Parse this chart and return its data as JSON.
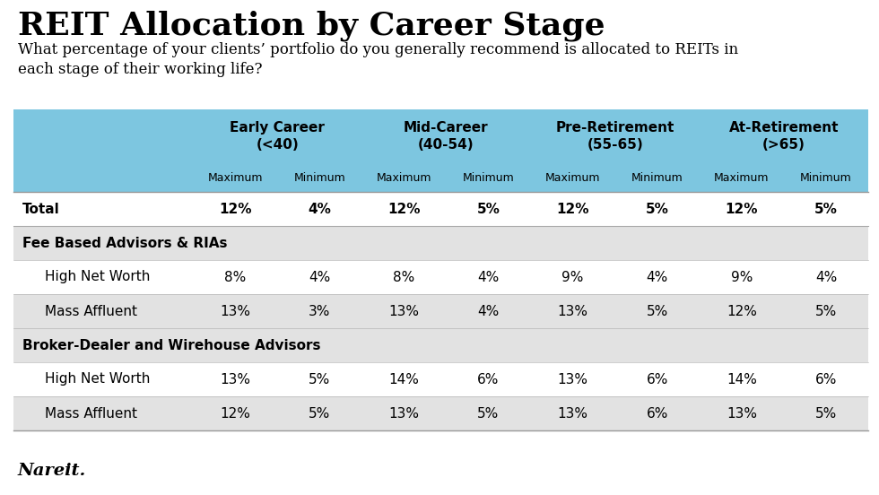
{
  "title": "REIT Allocation by Career Stage",
  "subtitle": "What percentage of your clients’ portfolio do you generally recommend is allocated to REITs in\neach stage of their working life?",
  "footer": "Nareit.",
  "col_groups": [
    "Early Career\n(<40)",
    "Mid-Career\n(40-54)",
    "Pre-Retirement\n(55-65)",
    "At-Retirement\n(>65)"
  ],
  "col_sub": [
    "Maximum",
    "Minimum",
    "Maximum",
    "Minimum",
    "Maximum",
    "Minimum",
    "Maximum",
    "Minimum"
  ],
  "rows": [
    {
      "label": "Total",
      "indent": 0,
      "bold": true,
      "values": [
        "12%",
        "4%",
        "12%",
        "5%",
        "12%",
        "5%",
        "12%",
        "5%"
      ],
      "bold_values": true,
      "bg": "#ffffff"
    },
    {
      "label": "Fee Based Advisors & RIAs",
      "indent": 0,
      "bold": true,
      "values": [
        "",
        "",
        "",
        "",
        "",
        "",
        "",
        ""
      ],
      "bold_values": false,
      "bg": "#e2e2e2"
    },
    {
      "label": "High Net Worth",
      "indent": 1,
      "bold": false,
      "values": [
        "8%",
        "4%",
        "8%",
        "4%",
        "9%",
        "4%",
        "9%",
        "4%"
      ],
      "bold_values": false,
      "bg": "#ffffff"
    },
    {
      "label": "Mass Affluent",
      "indent": 1,
      "bold": false,
      "values": [
        "13%",
        "3%",
        "13%",
        "4%",
        "13%",
        "5%",
        "12%",
        "5%"
      ],
      "bold_values": false,
      "bg": "#e2e2e2"
    },
    {
      "label": "Broker-Dealer and Wirehouse Advisors",
      "indent": 0,
      "bold": true,
      "values": [
        "",
        "",
        "",
        "",
        "",
        "",
        "",
        ""
      ],
      "bold_values": false,
      "bg": "#e2e2e2"
    },
    {
      "label": "High Net Worth",
      "indent": 1,
      "bold": false,
      "values": [
        "13%",
        "5%",
        "14%",
        "6%",
        "13%",
        "6%",
        "14%",
        "6%"
      ],
      "bold_values": false,
      "bg": "#ffffff"
    },
    {
      "label": "Mass Affluent",
      "indent": 1,
      "bold": false,
      "values": [
        "12%",
        "5%",
        "13%",
        "5%",
        "13%",
        "6%",
        "13%",
        "5%"
      ],
      "bold_values": false,
      "bg": "#e2e2e2"
    }
  ],
  "header_bg": "#7dc6e0",
  "title_fontsize": 26,
  "subtitle_fontsize": 12,
  "body_fontsize": 11,
  "footer_fontsize": 14
}
